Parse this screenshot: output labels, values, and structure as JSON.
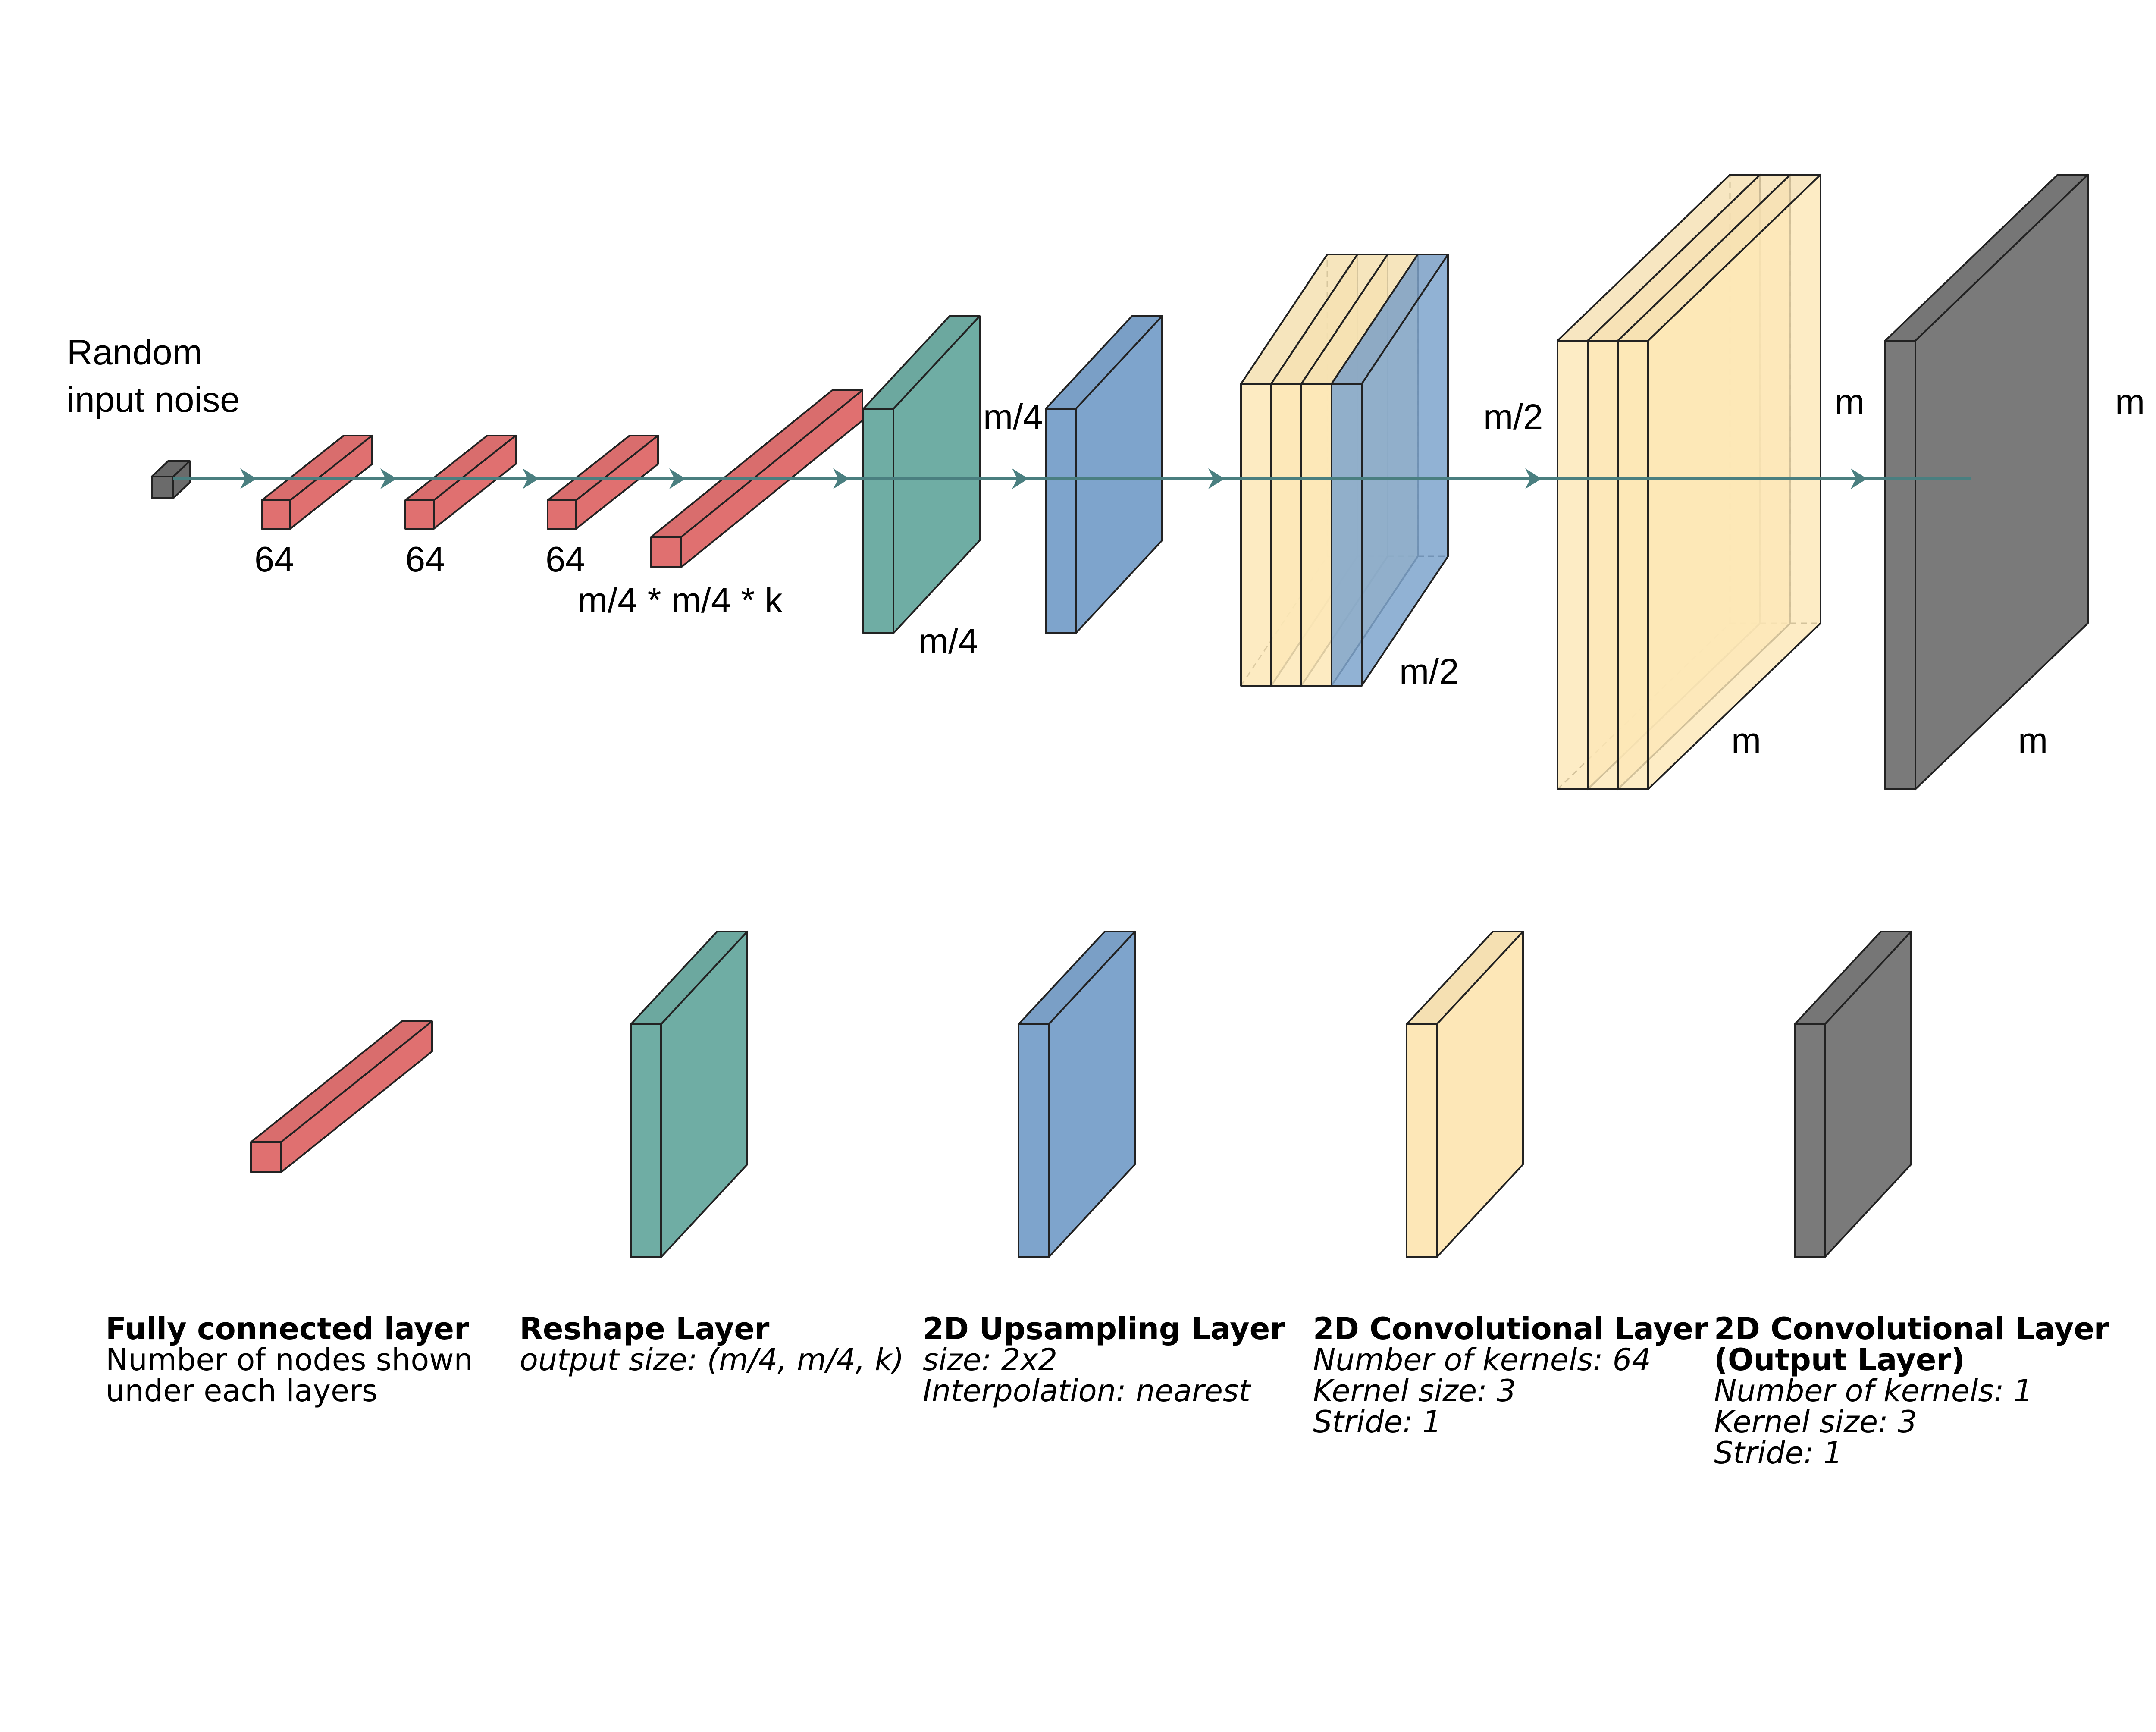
{
  "input": {
    "caption_line1": "Random",
    "caption_line2": "input noise"
  },
  "dense": {
    "nodes_1": "64",
    "nodes_2": "64",
    "nodes_3": "64",
    "nodes_4": "m/4 * m/4 * k"
  },
  "reshape": {
    "size_top": "m/4",
    "size_bottom": "m/4"
  },
  "conv1": {
    "size_top": "m/2",
    "size_bottom": "m/2"
  },
  "conv2": {
    "size_top": "m",
    "size_bottom": "m"
  },
  "output": {
    "size_top": "m",
    "size_bottom": "m"
  },
  "legend": [
    {
      "title": "Fully connected layer",
      "lines": [
        "Number of nodes shown",
        "under each layers"
      ]
    },
    {
      "title": "Reshape Layer",
      "lines": [
        "output size: (m/4, m/4, k)"
      ]
    },
    {
      "title": "2D Upsampling Layer",
      "lines": [
        "size: 2x2",
        "Interpolation: nearest"
      ]
    },
    {
      "title": "2D Convolutional Layer",
      "lines": [
        "Number of kernels: 64",
        "Kernel size: 3",
        "Stride: 1"
      ]
    },
    {
      "title": "2D Convolutional Layer",
      "title2": "(Output Layer)",
      "lines": [
        "Number of kernels: 1",
        "Kernel size: 3",
        "Stride: 1"
      ]
    }
  ],
  "colors": {
    "dense": "#e07070",
    "reshape": "#6fada4",
    "upsample": "#7ea4cc",
    "conv": "#fde7b7",
    "conv_overlap": "#fdd88a",
    "output": "#7a7a7a",
    "noise": "#6b6b6b",
    "arrow": "#4a7f80"
  }
}
